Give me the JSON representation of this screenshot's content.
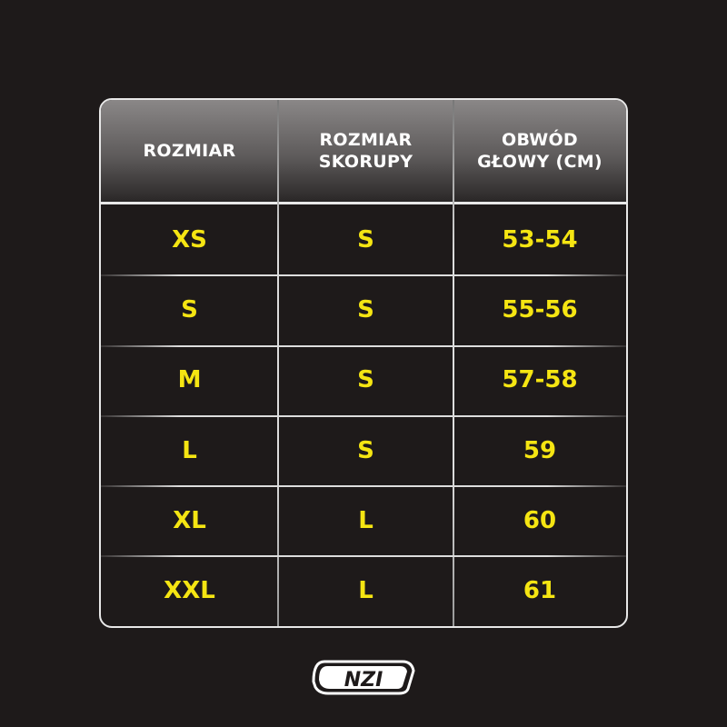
{
  "table": {
    "headers": [
      "ROZMIAR",
      "ROZMIAR\nSKORUPY",
      "OBWÓD\nGŁOWY (CM)"
    ],
    "header_lines": [
      [
        "ROZMIAR"
      ],
      [
        "ROZMIAR",
        "SKORUPY"
      ],
      [
        "OBWÓD",
        "GŁOWY (CM)"
      ]
    ],
    "rows": [
      [
        "XS",
        "S",
        "53-54"
      ],
      [
        "S",
        "S",
        "55-56"
      ],
      [
        "M",
        "S",
        "57-58"
      ],
      [
        "L",
        "S",
        "59"
      ],
      [
        "XL",
        "L",
        "60"
      ],
      [
        "XXL",
        "L",
        "61"
      ]
    ]
  },
  "logo": {
    "text": "NZI"
  },
  "colors": {
    "background": "#1e1a1a",
    "value_text": "#f5e512",
    "header_text": "#ffffff"
  }
}
